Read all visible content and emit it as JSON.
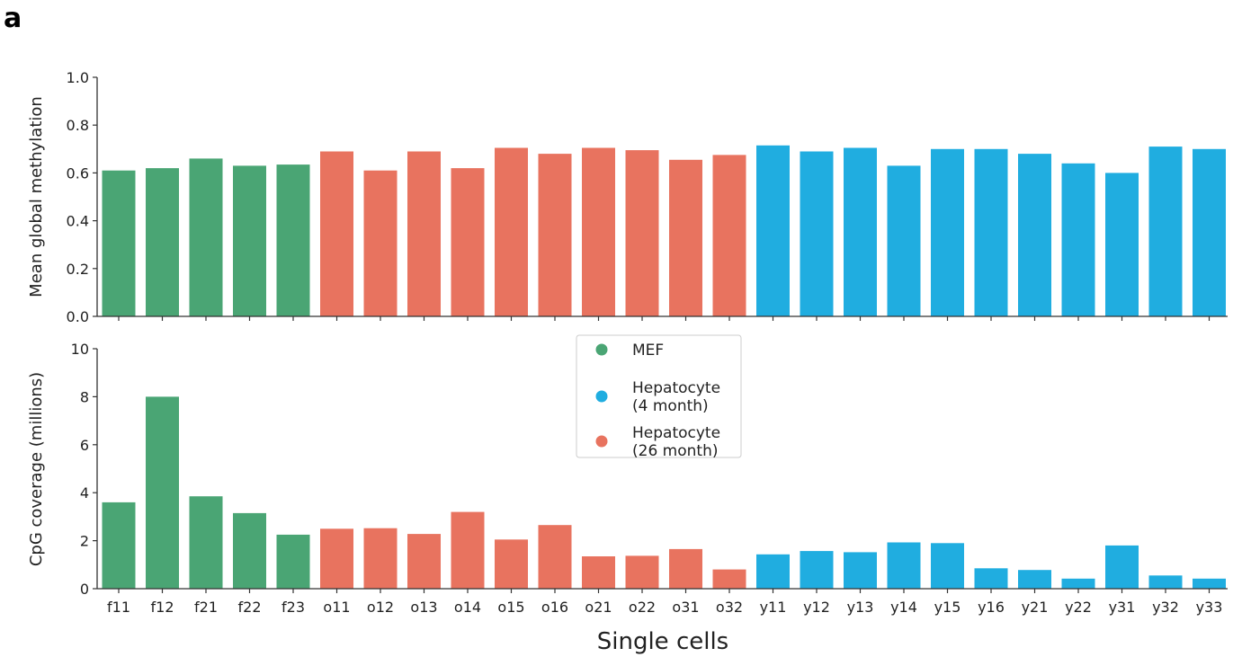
{
  "panel_label": "a",
  "colors": {
    "MEF": "#4aa574",
    "old": "#e8735f",
    "young": "#20ade0"
  },
  "chart_data": [
    {
      "type": "bar",
      "ylabel": "Mean global methylation",
      "ylim": [
        0,
        1.0
      ],
      "yticks": [
        "0.0",
        "0.2",
        "0.4",
        "0.6",
        "0.8",
        "1.0"
      ],
      "categories": [
        "f11",
        "f12",
        "f21",
        "f22",
        "f23",
        "o11",
        "o12",
        "o13",
        "o14",
        "o15",
        "o16",
        "o21",
        "o22",
        "o31",
        "o32",
        "y11",
        "y12",
        "y13",
        "y14",
        "y15",
        "y16",
        "y21",
        "y22",
        "y31",
        "y32",
        "y33"
      ],
      "groups": [
        "MEF",
        "MEF",
        "MEF",
        "MEF",
        "MEF",
        "old",
        "old",
        "old",
        "old",
        "old",
        "old",
        "old",
        "old",
        "old",
        "old",
        "young",
        "young",
        "young",
        "young",
        "young",
        "young",
        "young",
        "young",
        "young",
        "young",
        "young"
      ],
      "values": [
        0.61,
        0.62,
        0.66,
        0.63,
        0.635,
        0.69,
        0.61,
        0.69,
        0.62,
        0.705,
        0.68,
        0.705,
        0.695,
        0.655,
        0.675,
        0.715,
        0.69,
        0.705,
        0.63,
        0.7,
        0.7,
        0.68,
        0.64,
        0.6,
        0.71,
        0.7
      ],
      "show_xticklabels": false
    },
    {
      "type": "bar",
      "ylabel": "CpG coverage (millions)",
      "xlabel": "Single cells",
      "ylim": [
        0,
        10
      ],
      "yticks": [
        "0",
        "2",
        "4",
        "6",
        "8",
        "10"
      ],
      "categories": [
        "f11",
        "f12",
        "f21",
        "f22",
        "f23",
        "o11",
        "o12",
        "o13",
        "o14",
        "o15",
        "o16",
        "o21",
        "o22",
        "o31",
        "o32",
        "y11",
        "y12",
        "y13",
        "y14",
        "y15",
        "y16",
        "y21",
        "y22",
        "y31",
        "y32",
        "y33"
      ],
      "groups": [
        "MEF",
        "MEF",
        "MEF",
        "MEF",
        "MEF",
        "old",
        "old",
        "old",
        "old",
        "old",
        "old",
        "old",
        "old",
        "old",
        "old",
        "young",
        "young",
        "young",
        "young",
        "young",
        "young",
        "young",
        "young",
        "young",
        "young",
        "young"
      ],
      "values": [
        3.6,
        8.0,
        3.85,
        3.15,
        2.25,
        2.5,
        2.52,
        2.28,
        3.2,
        2.05,
        2.65,
        1.35,
        1.37,
        1.65,
        0.8,
        1.43,
        1.57,
        1.52,
        1.93,
        1.9,
        0.85,
        0.78,
        0.42,
        1.8,
        0.55,
        0.42
      ],
      "show_xticklabels": true,
      "legend": {
        "placement": "top-center",
        "entries": [
          {
            "group": "MEF",
            "lines": [
              "MEF"
            ]
          },
          {
            "group": "young",
            "lines": [
              "Hepatocyte",
              "(4 month)"
            ]
          },
          {
            "group": "old",
            "lines": [
              "Hepatocyte",
              "(26 month)"
            ]
          }
        ]
      }
    }
  ]
}
